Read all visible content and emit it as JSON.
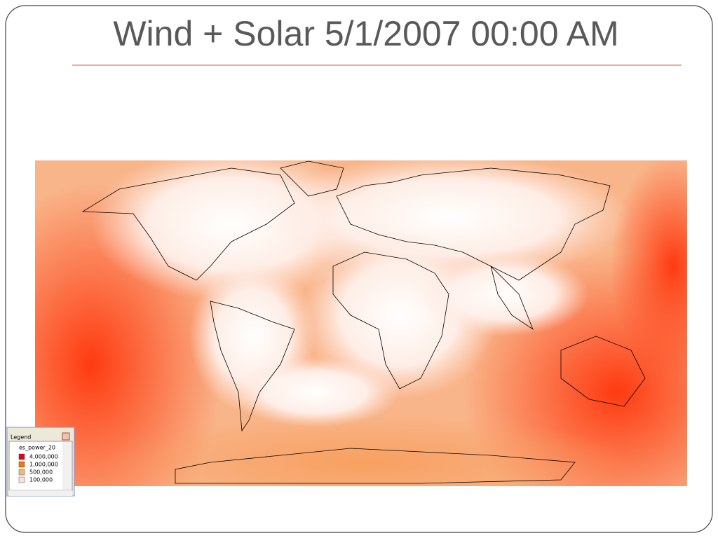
{
  "title": "Wind + Solar 5/1/2007 00:00 AM",
  "legend": {
    "title": "Legend",
    "layer": "es_power_20",
    "items": [
      {
        "label": "4,000,000",
        "color": "#e3001b"
      },
      {
        "label": "1,000,000",
        "color": "#f07800"
      },
      {
        "label": "500,000",
        "color": "#f6b77a"
      },
      {
        "label": "100,000",
        "color": "#fbe0dc"
      }
    ]
  }
}
